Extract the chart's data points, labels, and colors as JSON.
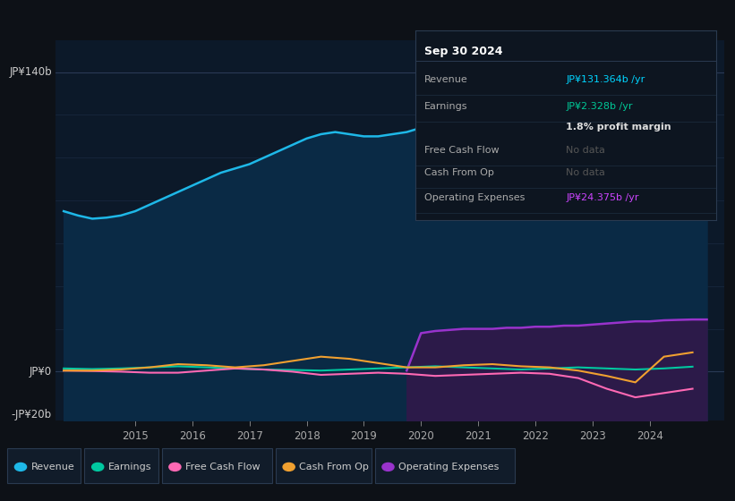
{
  "background_color": "#0d1117",
  "chart_bg_color": "#0c1929",
  "title_box": {
    "date": "Sep 30 2024",
    "rows": [
      {
        "label": "Revenue",
        "value": "JP¥131.364b /yr",
        "value_color": "#00d4ff"
      },
      {
        "label": "Earnings",
        "value": "JP¥2.328b /yr",
        "value_color": "#00c896"
      },
      {
        "label": "",
        "value": "1.8% profit margin",
        "value_color": "#ffffff"
      },
      {
        "label": "Free Cash Flow",
        "value": "No data",
        "value_color": "#666666"
      },
      {
        "label": "Cash From Op",
        "value": "No data",
        "value_color": "#666666"
      },
      {
        "label": "Operating Expenses",
        "value": "JP¥24.375b /yr",
        "value_color": "#cc44ff"
      }
    ]
  },
  "y_label_140": "JP¥140b",
  "y_label_0": "JP¥0",
  "y_label_neg20": "-JP¥20b",
  "ylim": [
    -23,
    155
  ],
  "xlim": [
    2013.6,
    2025.3
  ],
  "x_ticks": [
    2015,
    2016,
    2017,
    2018,
    2019,
    2020,
    2021,
    2022,
    2023,
    2024
  ],
  "revenue_years": [
    2013.75,
    2014.0,
    2014.25,
    2014.5,
    2014.75,
    2015.0,
    2015.25,
    2015.5,
    2015.75,
    2016.0,
    2016.25,
    2016.5,
    2016.75,
    2017.0,
    2017.25,
    2017.5,
    2017.75,
    2018.0,
    2018.25,
    2018.5,
    2018.75,
    2019.0,
    2019.25,
    2019.5,
    2019.75,
    2020.0,
    2020.25,
    2020.5,
    2020.75,
    2021.0,
    2021.25,
    2021.5,
    2021.75,
    2022.0,
    2022.25,
    2022.5,
    2022.75,
    2023.0,
    2023.25,
    2023.5,
    2023.75,
    2024.0,
    2024.25,
    2024.5,
    2024.75,
    2025.0
  ],
  "revenue_values": [
    75,
    73,
    71.5,
    72,
    73,
    75,
    78,
    81,
    84,
    87,
    90,
    93,
    95,
    97,
    100,
    103,
    106,
    109,
    111,
    112,
    111,
    110,
    110,
    111,
    112,
    114,
    113,
    111,
    109,
    107,
    108,
    110,
    112,
    116,
    120,
    124,
    127,
    131,
    133,
    134,
    130,
    127,
    129,
    131,
    131.364,
    131.364
  ],
  "revenue_color": "#1eb8e8",
  "revenue_fill": "#0a2a45",
  "earnings_years": [
    2013.75,
    2014.25,
    2014.75,
    2015.25,
    2015.75,
    2016.25,
    2016.75,
    2017.25,
    2017.75,
    2018.25,
    2018.75,
    2019.25,
    2019.75,
    2020.25,
    2020.75,
    2021.25,
    2021.75,
    2022.25,
    2022.75,
    2023.25,
    2023.75,
    2024.25,
    2024.75
  ],
  "earnings_values": [
    1.5,
    1.2,
    1.5,
    2.0,
    2.5,
    2.0,
    1.5,
    1.0,
    0.8,
    0.5,
    1.0,
    1.5,
    2.0,
    2.5,
    2.0,
    1.5,
    1.0,
    1.5,
    2.0,
    1.5,
    1.0,
    1.5,
    2.328
  ],
  "earnings_color": "#00c8a0",
  "fcf_years": [
    2013.75,
    2014.25,
    2014.75,
    2015.25,
    2015.75,
    2016.25,
    2016.75,
    2017.25,
    2017.75,
    2018.25,
    2018.75,
    2019.25,
    2019.75,
    2020.25,
    2020.75,
    2021.25,
    2021.75,
    2022.25,
    2022.75,
    2023.25,
    2023.75,
    2024.25,
    2024.75
  ],
  "fcf_values": [
    0.5,
    0.3,
    0.0,
    -0.5,
    -0.5,
    0.5,
    1.5,
    1.0,
    0.0,
    -1.5,
    -1.0,
    -0.5,
    -1.0,
    -2.0,
    -1.5,
    -1.0,
    -0.5,
    -1.0,
    -3.0,
    -8.0,
    -12.0,
    -10.0,
    -8.0
  ],
  "fcf_color": "#ff69b4",
  "cfo_years": [
    2013.75,
    2014.25,
    2014.75,
    2015.25,
    2015.75,
    2016.25,
    2016.75,
    2017.25,
    2017.75,
    2018.25,
    2018.75,
    2019.25,
    2019.75,
    2020.25,
    2020.75,
    2021.25,
    2021.75,
    2022.25,
    2022.75,
    2023.25,
    2023.75,
    2024.25,
    2024.75
  ],
  "cfo_values": [
    0.5,
    0.5,
    1.0,
    2.0,
    3.5,
    3.0,
    2.0,
    3.0,
    5.0,
    7.0,
    6.0,
    4.0,
    2.0,
    2.0,
    3.0,
    3.5,
    2.5,
    2.0,
    0.5,
    -2.0,
    -5.0,
    7.0,
    9.0
  ],
  "cfo_color": "#f0a030",
  "opex_years": [
    2019.75,
    2020.0,
    2020.25,
    2020.5,
    2020.75,
    2021.0,
    2021.25,
    2021.5,
    2021.75,
    2022.0,
    2022.25,
    2022.5,
    2022.75,
    2023.0,
    2023.25,
    2023.5,
    2023.75,
    2024.0,
    2024.25,
    2024.5,
    2024.75,
    2025.0
  ],
  "opex_values": [
    0.5,
    18.0,
    19.0,
    19.5,
    20.0,
    20.0,
    20.0,
    20.5,
    20.5,
    21.0,
    21.0,
    21.5,
    21.5,
    22.0,
    22.5,
    23.0,
    23.5,
    23.5,
    24.0,
    24.2,
    24.375,
    24.375
  ],
  "opex_color": "#9933cc",
  "opex_fill": "#2e1a4a",
  "legend_items": [
    {
      "label": "Revenue",
      "color": "#1eb8e8"
    },
    {
      "label": "Earnings",
      "color": "#00c8a0"
    },
    {
      "label": "Free Cash Flow",
      "color": "#ff69b4"
    },
    {
      "label": "Cash From Op",
      "color": "#f0a030"
    },
    {
      "label": "Operating Expenses",
      "color": "#9933cc"
    }
  ]
}
